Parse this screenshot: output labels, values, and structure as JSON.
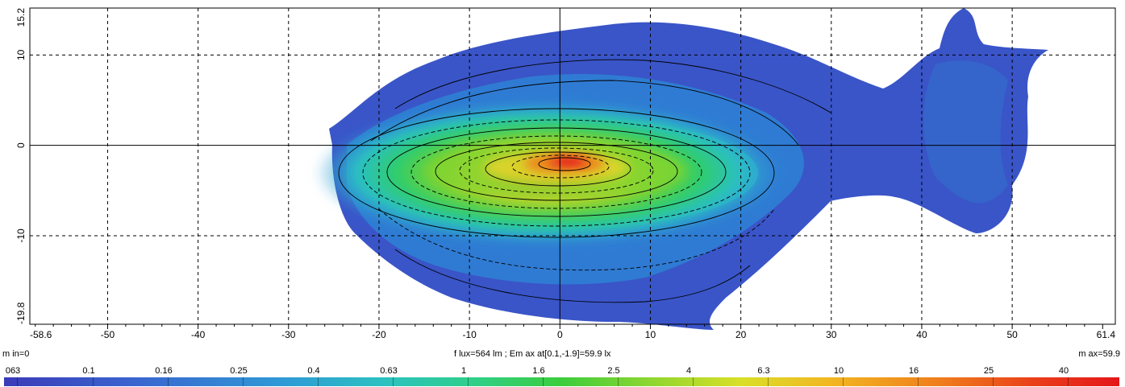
{
  "chart_data": {
    "type": "heatmap",
    "title": "",
    "x_ticks": [
      "-58.6",
      "-50",
      "-40",
      "-30",
      "-20",
      "-10",
      "0",
      "10",
      "20",
      "30",
      "40",
      "50",
      "61.4"
    ],
    "x_tick_values": [
      -58.6,
      -50,
      -40,
      -30,
      -20,
      -10,
      0,
      10,
      20,
      30,
      40,
      50,
      61.4
    ],
    "y_ticks": [
      "15.2",
      "10",
      "0",
      "-10",
      "-19.8"
    ],
    "y_tick_values": [
      15.2,
      10,
      0,
      -10,
      -19.8
    ],
    "xlim": [
      -58.6,
      61.4
    ],
    "ylim": [
      -19.8,
      15.2
    ],
    "grid": true,
    "min_label": "m in=0",
    "center_label": "f lux=564 lm ; Em ax at[0.1,-1.9]=59.9 lx",
    "max_label": "m ax=59.9",
    "max_point": [
      0.1,
      -1.9
    ],
    "max_value": 59.9,
    "min_value": 0,
    "legend_levels": [
      "063",
      "0.1",
      "0.16",
      "0.25",
      "0.4",
      "0.63",
      "1",
      "1.6",
      "2.5",
      "4",
      "6.3",
      "10",
      "16",
      "25",
      "40"
    ],
    "legend_level_values": [
      0.063,
      0.1,
      0.16,
      0.25,
      0.4,
      0.63,
      1,
      1.6,
      2.5,
      4,
      6.3,
      10,
      16,
      25,
      40
    ],
    "colors": {
      "low": "#3b3bb8",
      "mid_low": "#2f9ad6",
      "mid": "#3ccd3c",
      "mid_high": "#d9df28",
      "high": "#e4161a"
    }
  }
}
